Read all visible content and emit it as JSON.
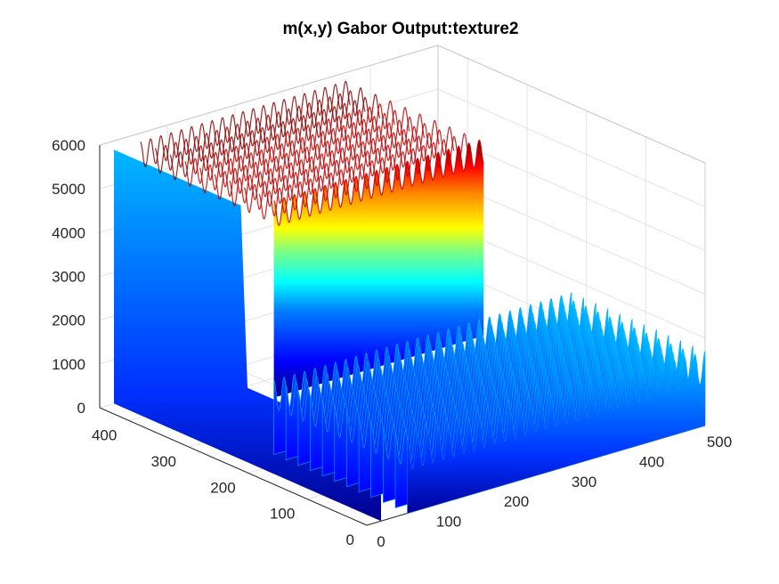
{
  "chart_data": {
    "type": "surface",
    "title": "m(x,y) Gabor Output:texture2",
    "xlabel": "",
    "ylabel": "",
    "zlabel": "",
    "xlim": [
      0,
      500
    ],
    "ylim": [
      0,
      450
    ],
    "zlim": [
      0,
      6000
    ],
    "x_ticks": [
      "0",
      "100",
      "200",
      "300",
      "400",
      "500"
    ],
    "y_ticks": [
      "0",
      "100",
      "200",
      "300",
      "400"
    ],
    "z_ticks": [
      "0",
      "1000",
      "2000",
      "3000",
      "4000",
      "5000",
      "6000"
    ],
    "grid": true,
    "colormap": "jet",
    "regions": [
      {
        "region": "y from 0 to ~450 along x ~0–60 (edge)",
        "value": 0
      },
      {
        "region": "high plateau (back half, y ≈ 225–450)",
        "value": 5200,
        "peak": 5800
      },
      {
        "region": "low plateau (front half, y ≈ 0–225)",
        "value": 1300,
        "peak": 1700
      }
    ],
    "ridge_count": 29
  }
}
